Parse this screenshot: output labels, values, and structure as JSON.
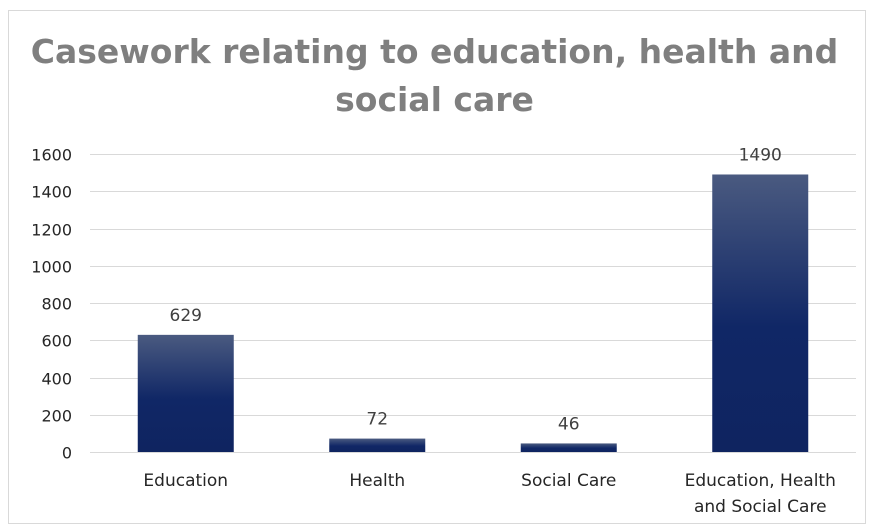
{
  "chart_data": {
    "type": "bar",
    "title": "Casework relating to education, health and social care",
    "title_lines": [
      "Casework relating to education, health and",
      "social care"
    ],
    "categories": [
      "Education",
      "Health",
      "Social Care",
      "Education, Health and Social Care"
    ],
    "category_lines": [
      [
        "Education"
      ],
      [
        "Health"
      ],
      [
        "Social Care"
      ],
      [
        "Education, Health",
        "and Social Care"
      ]
    ],
    "values": [
      629,
      72,
      46,
      1490
    ],
    "data_labels": [
      "629",
      "72",
      "46",
      "1490"
    ],
    "ylim": [
      0,
      1600
    ],
    "yticks": [
      0,
      200,
      400,
      600,
      800,
      1000,
      1200,
      1400,
      1600
    ],
    "xlabel": "",
    "ylabel": "",
    "grid": true,
    "legend": "none",
    "colors": {
      "bar_top": "#4a5a80",
      "bar_bottom": "#0f2460",
      "bar_mid": "#102766",
      "grid": "#d9d9d9",
      "title": "#7f7f7f"
    }
  }
}
